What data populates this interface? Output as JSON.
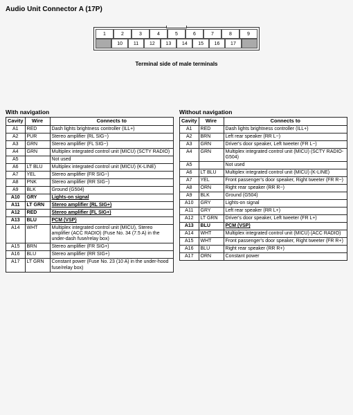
{
  "title": "Audio Unit Connector A (17P)",
  "connector": {
    "row1": [
      "1",
      "2",
      "3",
      "4",
      "5",
      "6",
      "7",
      "8",
      "9"
    ],
    "row2": [
      "",
      "10",
      "11",
      "12",
      "13",
      "14",
      "15",
      "16",
      "17",
      ""
    ],
    "caption": "Terminal side of male terminals"
  },
  "tables": [
    {
      "heading": "With navigation",
      "columns": [
        "Cavity",
        "Wire",
        "Connects to"
      ],
      "rows": [
        {
          "c": "A1",
          "w": "RED",
          "d": "Dash lights brightness controller (ILL+)",
          "b": false
        },
        {
          "c": "A2",
          "w": "PUR",
          "d": "Stereo amplifier (RL SIG−)",
          "b": false
        },
        {
          "c": "A3",
          "w": "GRN",
          "d": "Stereo amplifier (FL SIG−)",
          "b": false
        },
        {
          "c": "A4",
          "w": "GRN",
          "d": "Multiplex integrated control unit (MICU) (SCTY RADIO)",
          "b": false
        },
        {
          "c": "A5",
          "w": "",
          "d": "Not used",
          "b": false
        },
        {
          "c": "A6",
          "w": "LT BLU",
          "d": "Multiplex integrated control unit (MICU) (K-LINE)",
          "b": false
        },
        {
          "c": "A7",
          "w": "YEL",
          "d": "Stereo amplifier (FR SIG−)",
          "b": false
        },
        {
          "c": "A8",
          "w": "PNK",
          "d": "Stereo amplifier (RR SIG−)",
          "b": false
        },
        {
          "c": "A9",
          "w": "BLK",
          "d": "Ground (G504)",
          "b": false
        },
        {
          "c": "A10",
          "w": "GRY",
          "d": "Lights-on signal",
          "b": true
        },
        {
          "c": "A11",
          "w": "LT GRN",
          "d": "Stereo amplifier (RL SIG+)",
          "b": true
        },
        {
          "c": "A12",
          "w": "RED",
          "d": "Stereo amplifier (FL SIG+)",
          "b": true
        },
        {
          "c": "A13",
          "w": "BLU",
          "d": "PCM (VSP)",
          "b": true
        },
        {
          "c": "A14",
          "w": "WHT",
          "d": "Multiplex integrated control unit (MICU), Stereo amplifier (ACC RADIO) (Fuse No. 34 (7.5 A) in the under-dash fuse/relay box)",
          "b": false
        },
        {
          "c": "A15",
          "w": "BRN",
          "d": "Stereo amplifier (FR SIG+)",
          "b": false
        },
        {
          "c": "A16",
          "w": "BLU",
          "d": "Stereo amplifier (RR SIG+)",
          "b": false
        },
        {
          "c": "A17",
          "w": "LT GRN",
          "d": "Constant power (Fuse No. 23 (10 A) in the under-hood fuse/relay box)",
          "b": false
        }
      ]
    },
    {
      "heading": "Without navigation",
      "columns": [
        "Cavity",
        "Wire",
        "Connects to"
      ],
      "rows": [
        {
          "c": "A1",
          "w": "RED",
          "d": "Dash lights brightness controller (ILL+)",
          "b": false
        },
        {
          "c": "A2",
          "w": "BRN",
          "d": "Left rear speaker (RR L−)",
          "b": false
        },
        {
          "c": "A3",
          "w": "GRN",
          "d": "Driver's door speaker, Left tweeter (FR L−)",
          "b": false
        },
        {
          "c": "A4",
          "w": "GRN",
          "d": "Multiplex integrated control unit (MICU) (SCTY RADIO-G504)",
          "b": false
        },
        {
          "c": "A5",
          "w": "",
          "d": "Not used",
          "b": false
        },
        {
          "c": "A6",
          "w": "LT BLU",
          "d": "Multiplex integrated control unit (MICU) (K-LINE)",
          "b": false
        },
        {
          "c": "A7",
          "w": "YEL",
          "d": "Front passenger's door speaker, Right tweeter (FR R−)",
          "b": false
        },
        {
          "c": "A8",
          "w": "ORN",
          "d": "Right rear speaker (RR R−)",
          "b": false
        },
        {
          "c": "A9",
          "w": "BLK",
          "d": "Ground (G504)",
          "b": false
        },
        {
          "c": "A10",
          "w": "GRY",
          "d": "Lights-on signal",
          "b": false
        },
        {
          "c": "A11",
          "w": "GRY",
          "d": "Left rear speaker (RR L+)",
          "b": false
        },
        {
          "c": "A12",
          "w": "LT GRN",
          "d": "Driver's door speaker, Left tweeter (FR L+)",
          "b": false
        },
        {
          "c": "A13",
          "w": "BLU",
          "d": "PCM (VSP)",
          "b": true
        },
        {
          "c": "A14",
          "w": "WHT",
          "d": "Multiplex integrated control unit (MICU) (ACC RADIO)",
          "b": false
        },
        {
          "c": "A15",
          "w": "WHT",
          "d": "Front passenger's door speaker, Right tweeter (FR R+)",
          "b": false
        },
        {
          "c": "A16",
          "w": "BLU",
          "d": "Right rear speaker (RR R+)",
          "b": false
        },
        {
          "c": "A17",
          "w": "ORN",
          "d": "Constant power",
          "b": false
        }
      ]
    }
  ]
}
